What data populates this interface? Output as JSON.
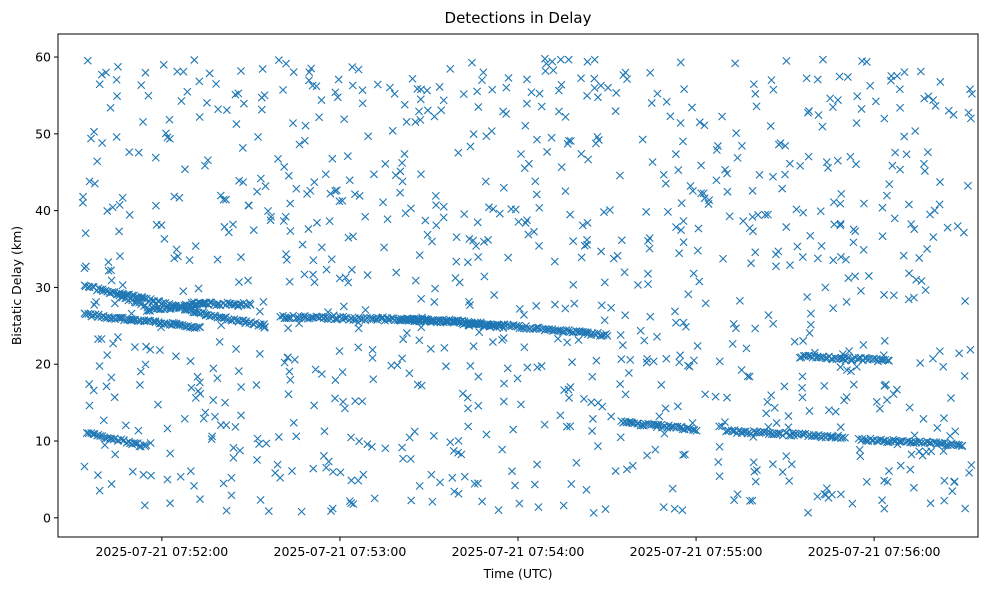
{
  "chart_data": {
    "type": "scatter",
    "title": "Detections in Delay",
    "xlabel": "Time (UTC)",
    "ylabel": "Bistatic Delay (km)",
    "marker": "x",
    "color": "#1f77b4",
    "grid": false,
    "legend": "none",
    "xlim": [
      "2025-07-21 07:51:25",
      "2025-07-21 07:56:35"
    ],
    "ylim": [
      -2.5,
      63
    ],
    "xticks": [
      "2025-07-21 07:52:00",
      "2025-07-21 07:53:00",
      "2025-07-21 07:54:00",
      "2025-07-21 07:55:00",
      "2025-07-21 07:56:00"
    ],
    "yticks": [
      0,
      10,
      20,
      30,
      40,
      50,
      60
    ],
    "tracks": [
      {
        "x": [
          "2025-07-21 07:51:34",
          "2025-07-21 07:51:53",
          "2025-07-21 07:52:15",
          "2025-07-21 07:52:35"
        ],
        "y": [
          30.1,
          28.6,
          26.5,
          25.0
        ]
      },
      {
        "x": [
          "2025-07-21 07:51:34",
          "2025-07-21 07:51:50",
          "2025-07-21 07:52:05",
          "2025-07-21 07:52:13"
        ],
        "y": [
          26.5,
          25.8,
          25.2,
          24.8
        ]
      },
      {
        "x": [
          "2025-07-21 07:51:55",
          "2025-07-21 07:52:08",
          "2025-07-21 07:52:15"
        ],
        "y": [
          27.0,
          27.6,
          27.9
        ]
      },
      {
        "x": [
          "2025-07-21 07:52:10",
          "2025-07-21 07:52:30"
        ],
        "y": [
          27.9,
          27.8
        ]
      },
      {
        "x": [
          "2025-07-21 07:52:40",
          "2025-07-21 07:53:40",
          "2025-07-21 07:54:30"
        ],
        "y": [
          26.2,
          25.6,
          23.8
        ]
      },
      {
        "x": [
          "2025-07-21 07:53:20",
          "2025-07-21 07:53:55"
        ],
        "y": [
          26.0,
          24.9
        ]
      },
      {
        "x": [
          "2025-07-21 07:54:35",
          "2025-07-21 07:55:00"
        ],
        "y": [
          12.4,
          11.5
        ]
      },
      {
        "x": [
          "2025-07-21 07:55:10",
          "2025-07-21 07:55:50"
        ],
        "y": [
          11.3,
          10.5
        ]
      },
      {
        "x": [
          "2025-07-21 07:55:55",
          "2025-07-21 07:56:30"
        ],
        "y": [
          10.2,
          9.5
        ]
      },
      {
        "x": [
          "2025-07-21 07:55:35",
          "2025-07-21 07:56:05"
        ],
        "y": [
          21.0,
          20.5
        ]
      },
      {
        "x": [
          "2025-07-21 07:51:35",
          "2025-07-21 07:51:55"
        ],
        "y": [
          11.0,
          9.3
        ]
      },
      {
        "x": [
          "2025-07-21 07:51:45",
          "2025-07-21 07:51:55"
        ],
        "y": [
          29.0,
          27.5
        ]
      }
    ],
    "scatter_x_range": [
      "2025-07-21 07:51:33",
      "2025-07-21 07:56:33"
    ],
    "scatter_y_range": [
      0.5,
      59.8
    ]
  }
}
